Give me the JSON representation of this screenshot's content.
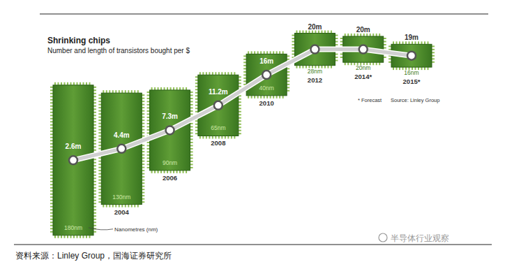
{
  "chart_data": {
    "type": "line",
    "title": "Shrinking chips",
    "subtitle": "Number and length of transistors bought per $",
    "categories": [
      null,
      "2004",
      "2006",
      "2008",
      "2010",
      "2012",
      "2014*",
      "2015*"
    ],
    "values": [
      2.6,
      4.4,
      7.3,
      11.2,
      16,
      20,
      20,
      19
    ],
    "value_labels": [
      "2.6m",
      "4.4m",
      "7.3m",
      "11.2m",
      "16m",
      "20m",
      "20m",
      "19m"
    ],
    "size": [
      180,
      130,
      90,
      65,
      40,
      28,
      20,
      16
    ],
    "size_labels": [
      "180nm",
      "130nm",
      "90nm",
      "65nm",
      "40nm",
      "28nm",
      "20nm",
      "16nm"
    ],
    "ylim": [
      0,
      25
    ],
    "color": "#d0d0d0",
    "marker": "circle",
    "data_labels": true,
    "tick_labels": "x",
    "annotations": [
      "Nanometres (nm)",
      "* Forecast",
      "Source: Linley Group"
    ],
    "source": "资料来源：Linley Group，国海证券研究所",
    "watermark": "半导体行业观察"
  }
}
